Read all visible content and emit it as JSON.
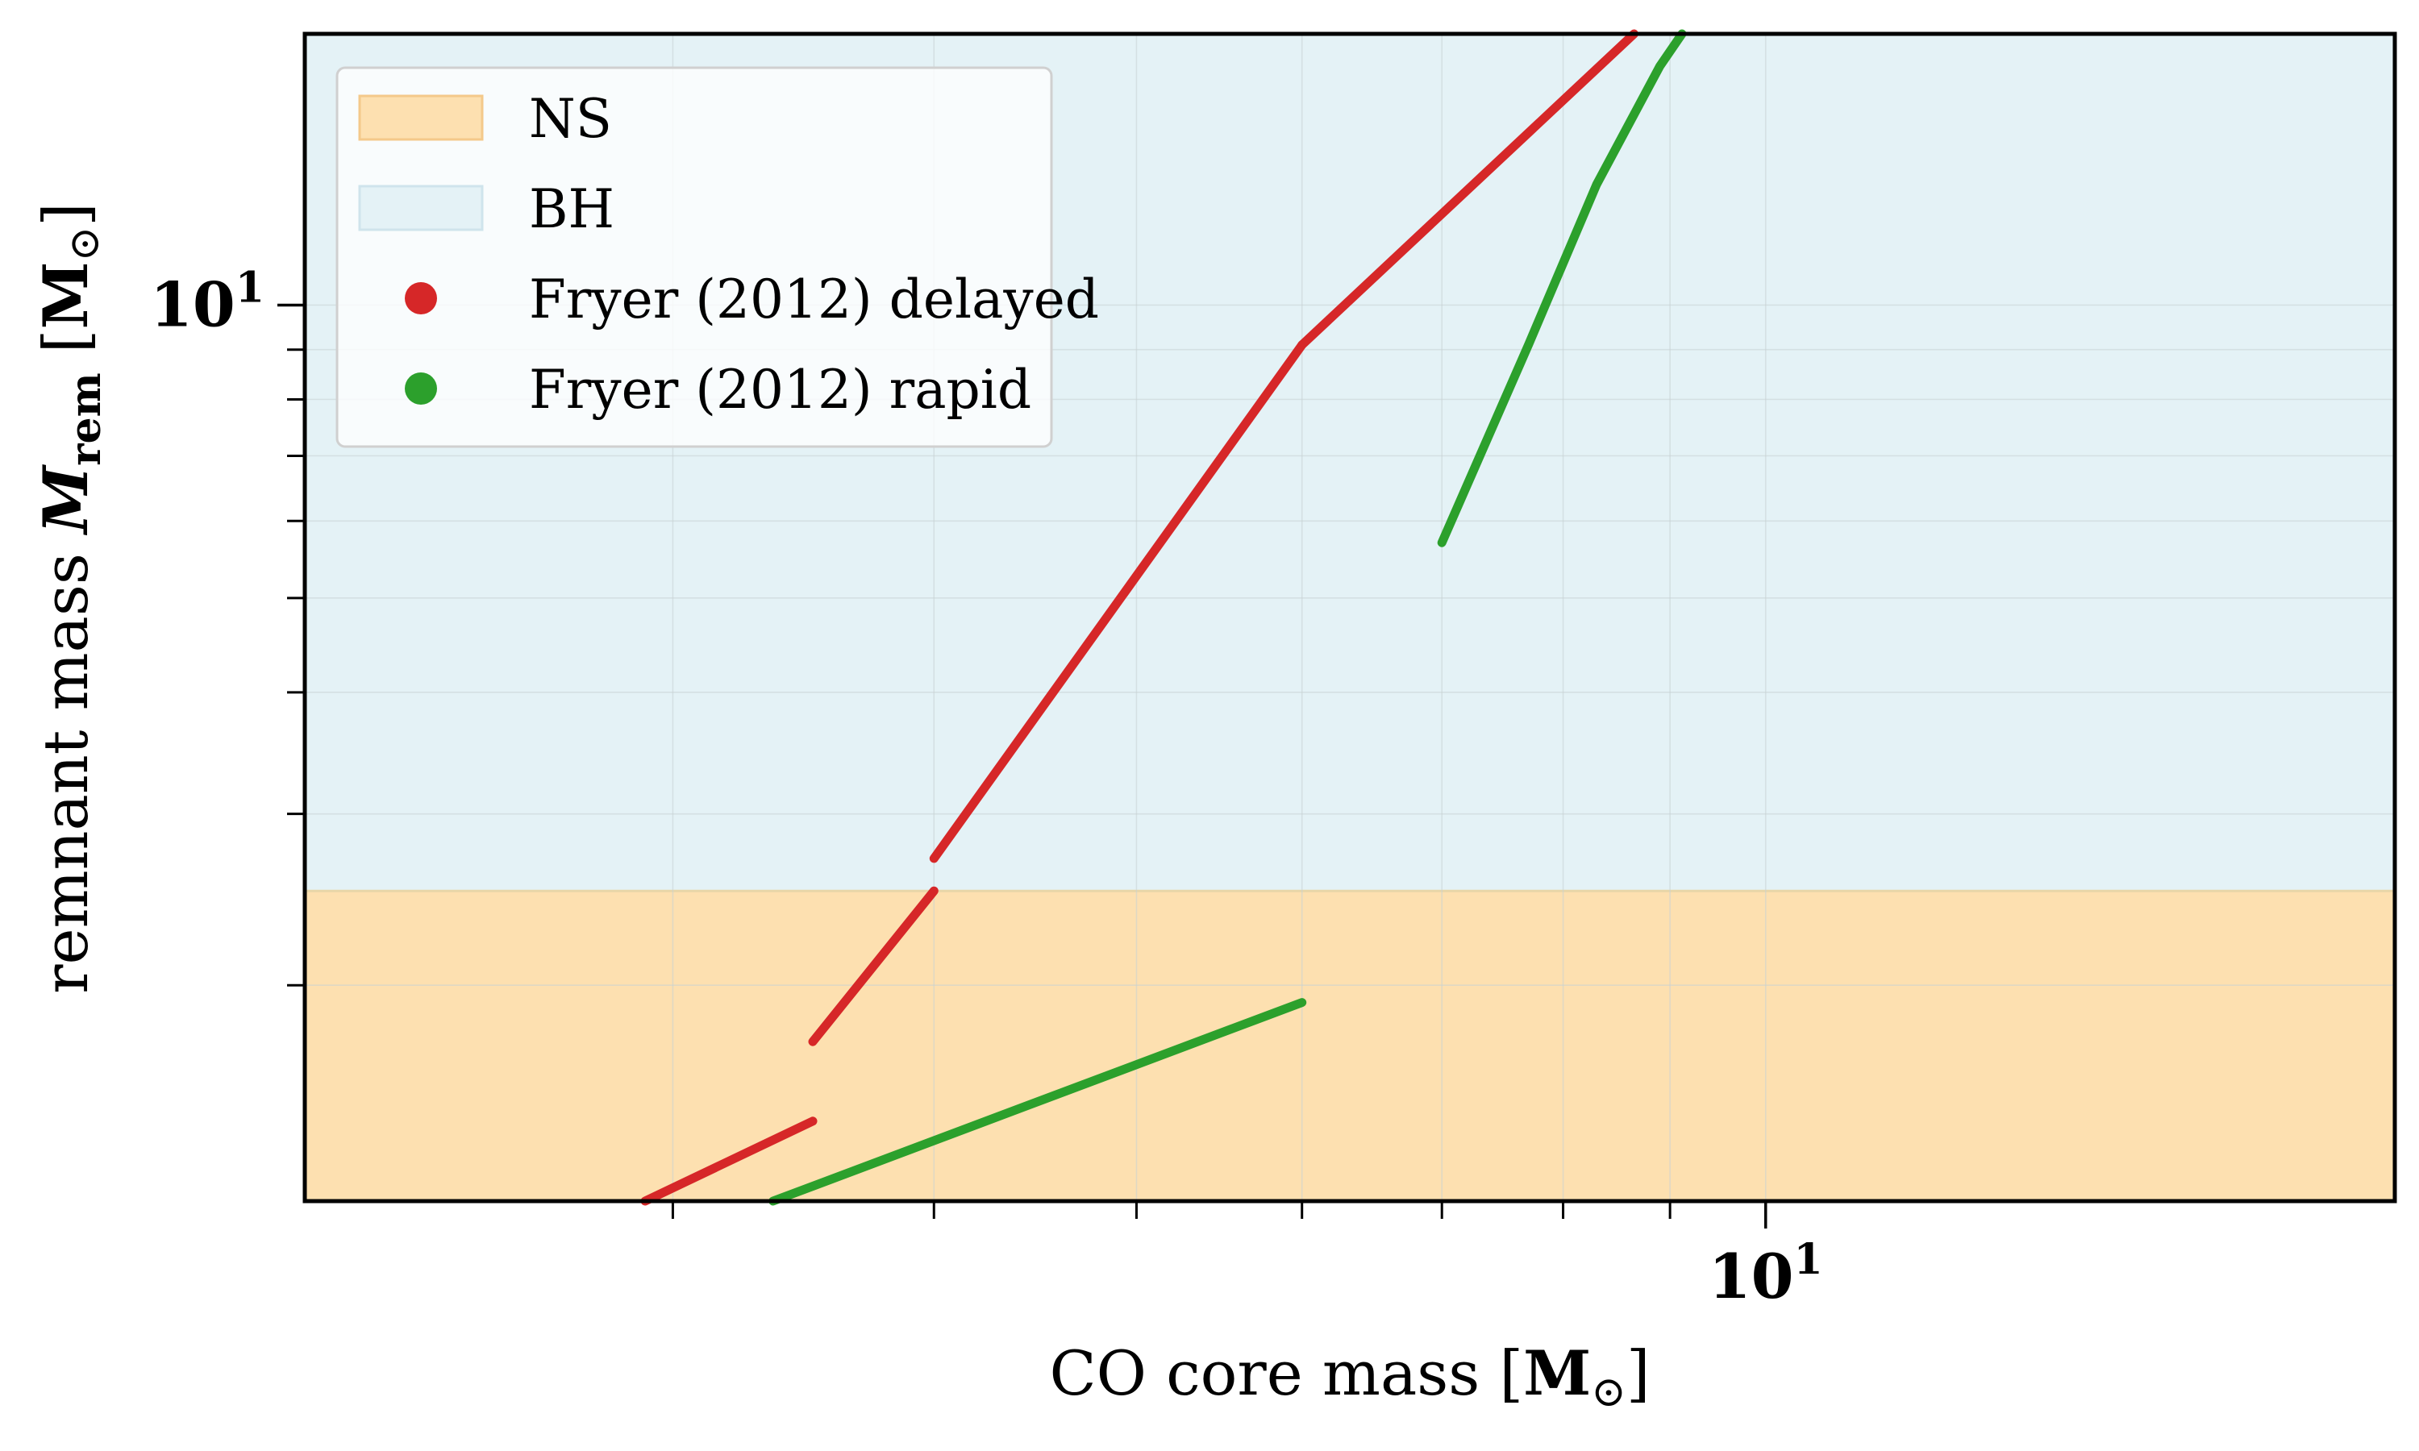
{
  "chart_data": {
    "type": "line",
    "xscale": "log",
    "yscale": "log",
    "xlim": [
      2.0,
      20.0
    ],
    "ylim": [
      1.2,
      19.0
    ],
    "xlabel": {
      "main": "CO core mass ",
      "unit": "M",
      "sub": "⊙"
    },
    "ylabel": {
      "main": "remnant mass ",
      "sym": "M",
      "symsub": "rem",
      "unit": "M",
      "sub": "⊙"
    },
    "xticks": [
      {
        "value": 10,
        "base": "10",
        "exp": "1"
      }
    ],
    "yticks": [
      {
        "value": 10,
        "base": "10",
        "exp": "1"
      }
    ],
    "x_minor_ticks": [
      3,
      4,
      5,
      6,
      7,
      8,
      9
    ],
    "y_minor_ticks": [
      2,
      3,
      4,
      5,
      6,
      7,
      8,
      9
    ],
    "grid": true,
    "regions": [
      {
        "name": "NS",
        "y_range": [
          1.2,
          2.5
        ],
        "color": "#fde0b0"
      },
      {
        "name": "BH",
        "y_range": [
          2.5,
          19.0
        ],
        "color": "#e4f2f6"
      }
    ],
    "series": [
      {
        "name": "Fryer (2012) delayed",
        "color": "#d62728",
        "segments": [
          [
            [
              2.91,
              1.2
            ],
            [
              3.5,
              1.45
            ]
          ],
          [
            [
              3.5,
              1.75
            ],
            [
              4.0,
              2.5
            ]
          ],
          [
            [
              4.0,
              2.7
            ],
            [
              6.0,
              9.1
            ]
          ],
          [
            [
              6.0,
              9.1
            ],
            [
              8.65,
              19.0
            ]
          ]
        ]
      },
      {
        "name": "Fryer (2012) rapid",
        "color": "#2ca02c",
        "segments": [
          [
            [
              3.35,
              1.2
            ],
            [
              6.0,
              1.92
            ]
          ],
          [
            [
              7.0,
              5.7
            ],
            [
              7.7,
              9.1
            ],
            [
              8.3,
              13.3
            ],
            [
              8.9,
              17.6
            ],
            [
              9.12,
              19.0
            ]
          ]
        ]
      }
    ],
    "legend": {
      "position": "upper-left"
    }
  }
}
